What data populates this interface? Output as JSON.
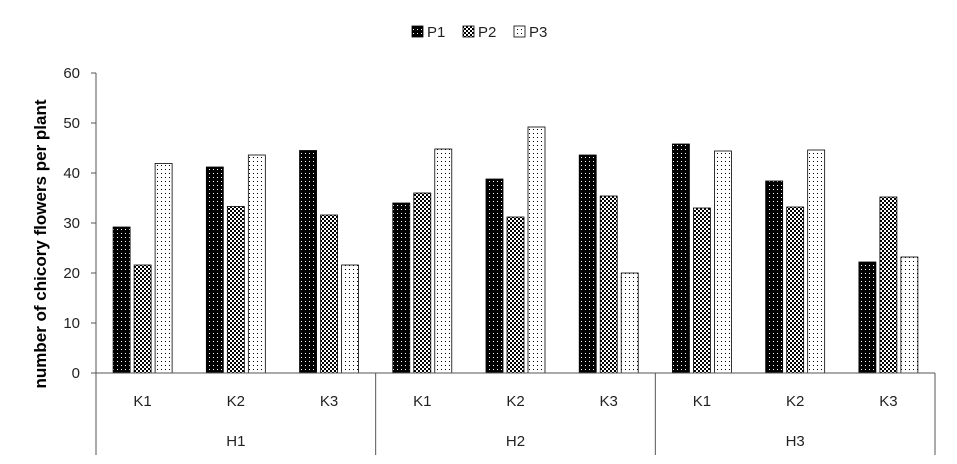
{
  "chart_data": {
    "type": "bar",
    "ylabel": "number of chicory flowers  per plant",
    "xlabel": "",
    "ylim": [
      0,
      60
    ],
    "yticks": [
      0,
      10,
      20,
      30,
      40,
      50,
      60
    ],
    "grid": false,
    "legend_position": "top-center",
    "groups": [
      "H1",
      "H2",
      "H3"
    ],
    "subcategories": [
      "K1",
      "K2",
      "K3"
    ],
    "categories": [
      "H1 K1",
      "H1 K2",
      "H1 K3",
      "H2 K1",
      "H2 K2",
      "H2 K3",
      "H3 K1",
      "H3 K2",
      "H3 K3"
    ],
    "series": [
      {
        "name": "P1",
        "pattern": "black-dots",
        "values": [
          29.2,
          41.2,
          44.5,
          34.0,
          38.8,
          43.6,
          45.8,
          38.4,
          22.2
        ]
      },
      {
        "name": "P2",
        "pattern": "dense-checker",
        "values": [
          21.6,
          33.3,
          31.6,
          36.0,
          31.2,
          35.4,
          33.0,
          33.2,
          35.2
        ]
      },
      {
        "name": "P3",
        "pattern": "sparse-dots",
        "values": [
          41.9,
          43.6,
          21.6,
          44.8,
          49.2,
          20.0,
          44.4,
          44.6,
          23.2
        ]
      }
    ]
  }
}
